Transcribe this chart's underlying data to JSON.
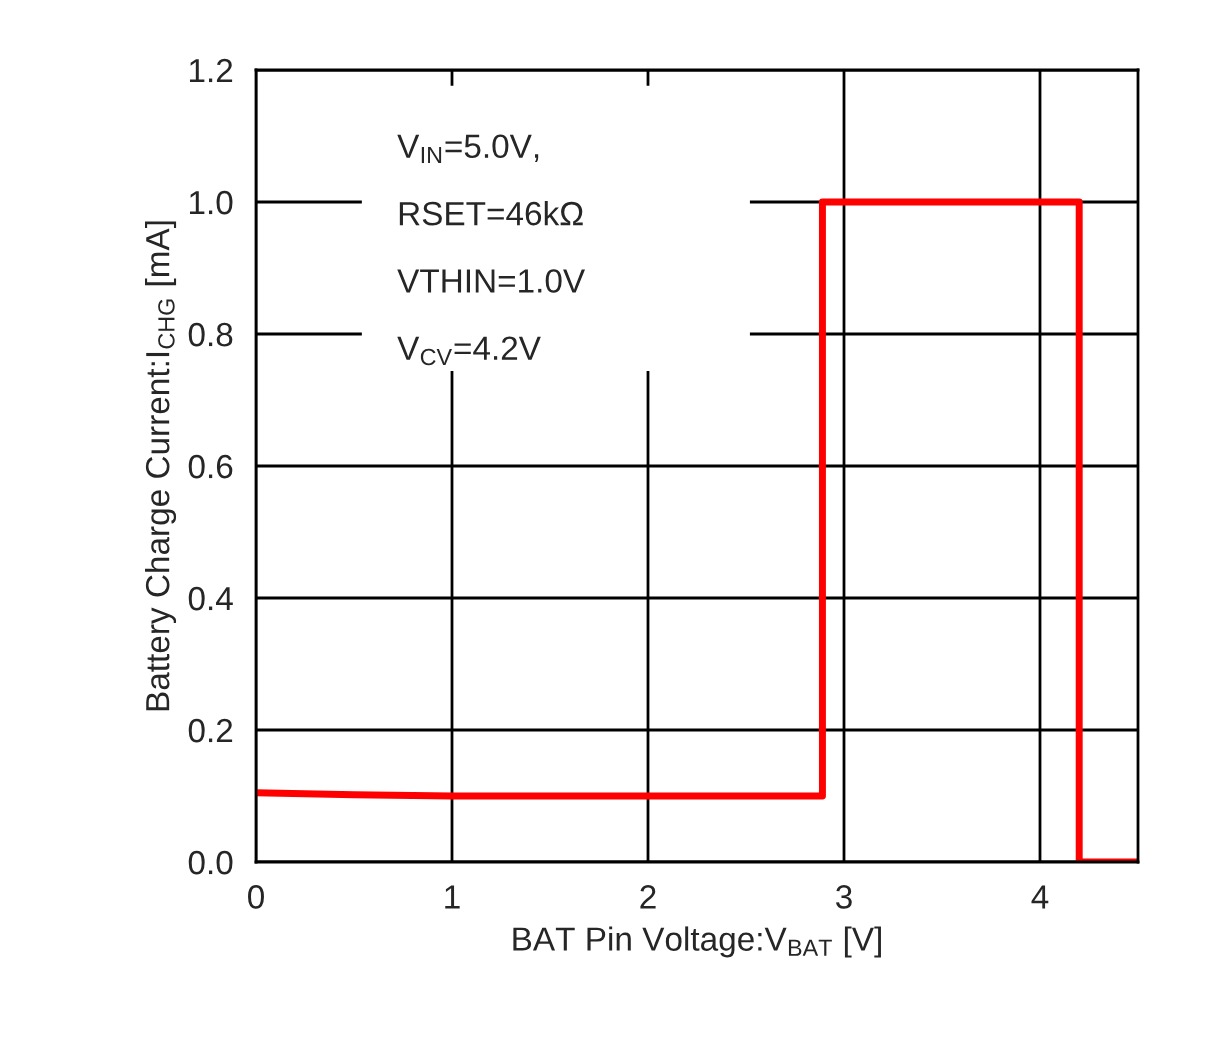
{
  "chart_data": {
    "type": "line",
    "xlabel": "BAT Pin Voltage:V$_{BAT}$ [V]",
    "ylabel": "Battery Charge Current:I$_{CHG}$ [mA]",
    "annotations": [
      "V$_{IN}$=5.0V,",
      "RSET=46kΩ",
      "VTHIN=1.0V",
      "V$_{CV}$=4.2V"
    ],
    "series": [
      {
        "color": "#ff0000",
        "x": [
          0,
          0.5,
          1,
          1.5,
          2,
          2.5,
          2.89,
          2.89,
          3.5,
          4.2,
          4.2,
          4.5
        ],
        "values": [
          0.105,
          0.102,
          0.1,
          0.1,
          0.1,
          0.1,
          0.1,
          1.0,
          1.0,
          1.0,
          0,
          0
        ]
      }
    ],
    "xlim": [
      0,
      4.5
    ],
    "xticks": [
      0,
      1,
      2,
      3,
      4
    ],
    "ylim": [
      0,
      1.2
    ],
    "yticks": [
      {
        "value": 0,
        "label": "0.0"
      },
      0.2,
      0.4,
      0.6,
      0.8,
      {
        "value": 1.0,
        "label": "1.0"
      },
      1.2
    ],
    "grid": true,
    "legend": false,
    "marker": "none",
    "line_style": "solid"
  }
}
